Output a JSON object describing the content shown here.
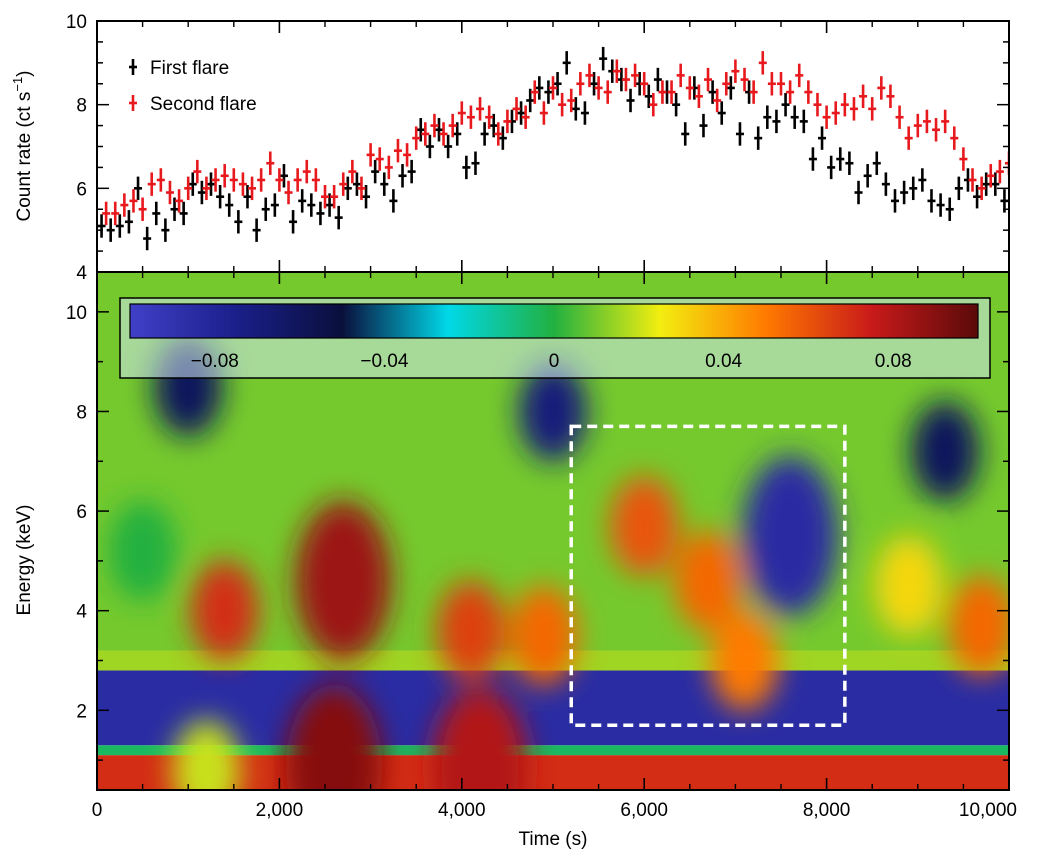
{
  "chart_data": [
    {
      "type": "scatter",
      "panel": "top",
      "ylabel_main": "Count rate (ct s",
      "ylabel_sup": "−1",
      "ylabel_end": ")",
      "ylim": [
        4,
        10
      ],
      "yticks": [
        4,
        6,
        8,
        10
      ],
      "xlim": [
        0,
        10000
      ],
      "legend": {
        "placement": "top-left",
        "entries": [
          "First flare",
          "Second flare"
        ]
      },
      "series": [
        {
          "name": "First flare",
          "color": "#000000",
          "yerr": 0.28,
          "x": [
            50,
            150,
            250,
            350,
            450,
            550,
            650,
            750,
            850,
            950,
            1050,
            1150,
            1250,
            1350,
            1450,
            1550,
            1650,
            1750,
            1850,
            1950,
            2050,
            2150,
            2250,
            2350,
            2450,
            2550,
            2650,
            2750,
            2850,
            2950,
            3050,
            3150,
            3250,
            3350,
            3450,
            3550,
            3650,
            3750,
            3850,
            3950,
            4050,
            4150,
            4250,
            4350,
            4450,
            4550,
            4650,
            4750,
            4850,
            4950,
            5050,
            5150,
            5250,
            5350,
            5450,
            5550,
            5650,
            5750,
            5850,
            5950,
            6050,
            6150,
            6250,
            6350,
            6450,
            6550,
            6650,
            6750,
            6850,
            6950,
            7050,
            7150,
            7250,
            7350,
            7450,
            7550,
            7650,
            7750,
            7850,
            7950,
            8050,
            8150,
            8250,
            8350,
            8450,
            8550,
            8650,
            8750,
            8850,
            8950,
            9050,
            9150,
            9250,
            9350,
            9450,
            9550,
            9650,
            9750,
            9850,
            9950
          ],
          "y": [
            5.1,
            5.0,
            5.1,
            5.2,
            6.0,
            4.8,
            5.4,
            5.0,
            5.5,
            5.4,
            6.1,
            5.9,
            6.1,
            5.8,
            5.6,
            5.2,
            5.8,
            5.0,
            5.5,
            5.6,
            6.3,
            5.2,
            5.7,
            5.6,
            5.4,
            5.6,
            5.3,
            6.0,
            6.1,
            5.8,
            6.4,
            6.1,
            5.7,
            6.3,
            6.4,
            7.4,
            7.0,
            7.4,
            7.0,
            7.3,
            6.5,
            6.6,
            7.3,
            7.5,
            7.2,
            7.6,
            7.8,
            8.1,
            8.4,
            8.3,
            8.5,
            9.0,
            7.9,
            7.8,
            8.5,
            9.1,
            8.8,
            8.6,
            8.1,
            8.5,
            8.2,
            8.6,
            8.3,
            8.0,
            7.3,
            8.4,
            7.5,
            8.3,
            7.8,
            8.4,
            7.3,
            8.3,
            7.2,
            7.7,
            7.6,
            8.0,
            7.7,
            7.6,
            6.7,
            7.2,
            6.5,
            6.7,
            6.6,
            5.9,
            6.3,
            6.6,
            6.1,
            5.7,
            5.9,
            6.0,
            6.2,
            5.7,
            5.6,
            5.5,
            6.0,
            6.2,
            5.8,
            6.1,
            6.1,
            5.7
          ]
        },
        {
          "name": "Second flare",
          "color": "#e8191d",
          "yerr": 0.28,
          "x": [
            100,
            200,
            300,
            400,
            500,
            600,
            700,
            800,
            900,
            1000,
            1100,
            1200,
            1300,
            1400,
            1500,
            1600,
            1700,
            1800,
            1900,
            2000,
            2100,
            2200,
            2300,
            2400,
            2500,
            2600,
            2700,
            2800,
            2900,
            3000,
            3100,
            3200,
            3300,
            3400,
            3500,
            3600,
            3700,
            3800,
            3900,
            4000,
            4100,
            4200,
            4300,
            4400,
            4500,
            4600,
            4700,
            4800,
            4900,
            5000,
            5100,
            5200,
            5300,
            5400,
            5500,
            5600,
            5700,
            5800,
            5900,
            6000,
            6100,
            6200,
            6300,
            6400,
            6500,
            6600,
            6700,
            6800,
            6900,
            7000,
            7100,
            7200,
            7300,
            7400,
            7500,
            7600,
            7700,
            7800,
            7900,
            8000,
            8100,
            8200,
            8300,
            8400,
            8500,
            8600,
            8700,
            8800,
            8900,
            9000,
            9100,
            9200,
            9300,
            9400,
            9500,
            9600,
            9700,
            9800,
            9900,
            10000
          ],
          "y": [
            5.4,
            5.4,
            5.6,
            5.7,
            5.5,
            6.1,
            6.2,
            5.9,
            5.7,
            6.0,
            6.4,
            6.0,
            6.2,
            6.3,
            6.2,
            6.1,
            6.0,
            6.2,
            6.6,
            6.2,
            5.9,
            6.2,
            6.4,
            6.2,
            5.8,
            5.8,
            6.1,
            6.4,
            6.0,
            6.8,
            6.7,
            6.5,
            6.9,
            6.8,
            7.2,
            7.3,
            7.5,
            7.3,
            7.5,
            7.8,
            7.7,
            7.9,
            7.7,
            7.3,
            7.6,
            7.9,
            7.7,
            8.3,
            7.8,
            8.4,
            8.0,
            8.1,
            8.5,
            8.7,
            8.4,
            8.3,
            8.8,
            8.6,
            8.7,
            8.5,
            8.0,
            8.3,
            8.3,
            8.7,
            8.4,
            8.2,
            8.6,
            8.1,
            8.5,
            8.8,
            8.6,
            8.3,
            9.0,
            8.5,
            8.5,
            8.3,
            8.7,
            8.3,
            8.0,
            7.7,
            7.8,
            8.0,
            7.9,
            8.2,
            7.9,
            8.4,
            8.2,
            7.7,
            7.2,
            7.5,
            7.6,
            7.4,
            7.6,
            7.2,
            6.7,
            6.2,
            6.0,
            6.3,
            6.4,
            6.6
          ]
        }
      ]
    },
    {
      "type": "heatmap",
      "panel": "bottom",
      "xlabel": "Time (s)",
      "ylabel": "Energy (keV)",
      "xlim": [
        0,
        10000
      ],
      "ylim": [
        0.4,
        10.8
      ],
      "xticks": [
        0,
        2000,
        4000,
        6000,
        8000,
        10000
      ],
      "xtick_labels": [
        "0",
        "2,000",
        "4,000",
        "6,000",
        "8,000",
        "10,000"
      ],
      "yticks": [
        2,
        4,
        6,
        8,
        10
      ],
      "colorbar": {
        "range": [
          -0.1,
          0.1
        ],
        "ticks": [
          -0.08,
          -0.04,
          0,
          0.04,
          0.08
        ],
        "tick_labels": [
          "−0.08",
          "−0.04",
          "0",
          "0.04",
          "0.08"
        ],
        "colormap": [
          "#4040c8",
          "#1a1f8a",
          "#0a0f3c",
          "#00d8e8",
          "#22b040",
          "#f2ee10",
          "#ff7a00",
          "#c81a1a",
          "#5a0a0a"
        ]
      },
      "highlight_box": {
        "x_range": [
          5200,
          8200
        ],
        "y_range": [
          1.7,
          7.7
        ],
        "style": "white dashed"
      },
      "bands": [
        {
          "y_range": [
            0.4,
            1.1
          ],
          "value": 0.07
        },
        {
          "y_range": [
            1.1,
            1.3
          ],
          "value": -0.005
        },
        {
          "y_range": [
            1.3,
            2.8
          ],
          "value": -0.085
        },
        {
          "y_range": [
            2.8,
            3.2
          ],
          "value": 0.015
        },
        {
          "y_range": [
            3.2,
            10.8
          ],
          "value": 0.01
        }
      ],
      "features": [
        {
          "t": 500,
          "e": 5.2,
          "value": 0.0
        },
        {
          "t": 1400,
          "e": 4.0,
          "value": 0.07
        },
        {
          "t": 2700,
          "e": 4.6,
          "value": 0.085
        },
        {
          "t": 4100,
          "e": 3.6,
          "value": 0.065
        },
        {
          "t": 4900,
          "e": 3.5,
          "value": 0.055
        },
        {
          "t": 6000,
          "e": 5.7,
          "value": 0.06
        },
        {
          "t": 6700,
          "e": 4.6,
          "value": 0.055
        },
        {
          "t": 7100,
          "e": 3.0,
          "value": 0.05
        },
        {
          "t": 7600,
          "e": 5.5,
          "value": -0.085
        },
        {
          "t": 8900,
          "e": 4.5,
          "value": 0.03
        },
        {
          "t": 9700,
          "e": 3.7,
          "value": 0.055
        },
        {
          "t": 1000,
          "e": 8.5,
          "value": -0.06
        },
        {
          "t": 5000,
          "e": 8.0,
          "value": -0.07
        },
        {
          "t": 9300,
          "e": 7.2,
          "value": -0.06
        },
        {
          "t": 2600,
          "e": 0.9,
          "value": 0.09
        },
        {
          "t": 4200,
          "e": 0.85,
          "value": 0.08
        },
        {
          "t": 1200,
          "e": 0.8,
          "value": 0.02
        }
      ]
    }
  ]
}
